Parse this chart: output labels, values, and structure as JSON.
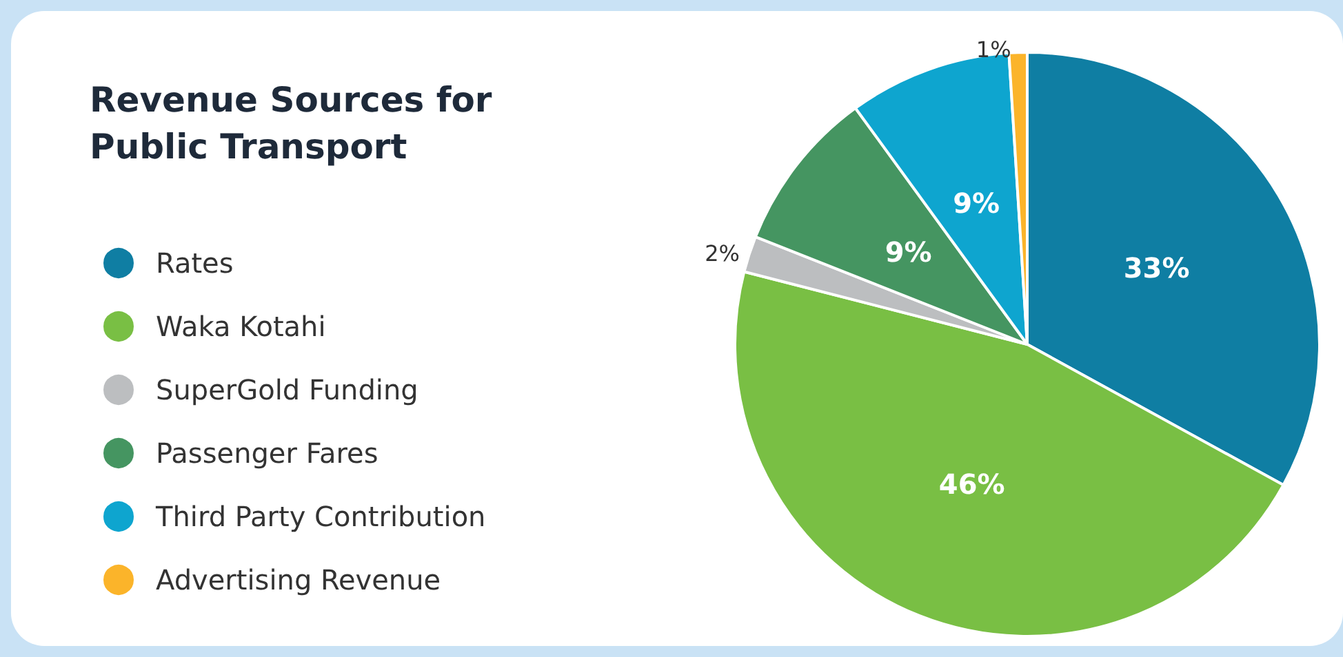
{
  "chart_data": {
    "type": "pie",
    "title": "Revenue Sources for Public Transport",
    "categories": [
      "Rates",
      "Waka Kotahi",
      "SuperGold Funding",
      "Passenger Fares",
      "Third Party Contribution",
      "Advertising Revenue"
    ],
    "values": [
      33,
      46,
      2,
      9,
      9,
      1
    ],
    "value_labels": [
      "33%",
      "46%",
      "2%",
      "9%",
      "9%",
      "1%"
    ],
    "colors": [
      "#0f7ea3",
      "#79bf44",
      "#bcbec0",
      "#459561",
      "#0ea5cf",
      "#fbb42a"
    ],
    "legend": "left"
  }
}
